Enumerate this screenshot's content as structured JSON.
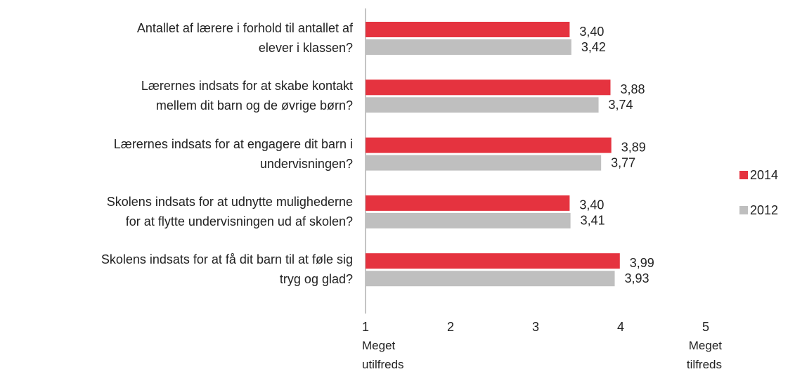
{
  "chart_data": {
    "type": "barh",
    "categories": [
      "Antallet af lærere i forhold til antallet af\nelever i klassen?",
      "Lærernes indsats for at skabe kontakt\nmellem dit barn og de øvrige børn?",
      "Lærernes indsats for at engagere dit barn i\nundervisningen?",
      "Skolens indsats for at udnytte mulighederne\nfor at flytte undervisningen ud af skolen?",
      "Skolens indsats for at få dit barn til at føle sig\ntryg og glad?"
    ],
    "series": [
      {
        "name": "2014",
        "color": "#e5333f",
        "values": [
          3.4,
          3.88,
          3.89,
          3.4,
          3.99
        ],
        "value_labels": [
          "3,40",
          "3,88",
          "3,89",
          "3,40",
          "3,99"
        ]
      },
      {
        "name": "2012",
        "color": "#bfbfbf",
        "values": [
          3.42,
          3.74,
          3.77,
          3.41,
          3.93
        ],
        "value_labels": [
          "3,42",
          "3,74",
          "3,77",
          "3,41",
          "3,93"
        ]
      }
    ],
    "xlim": [
      1,
      5
    ],
    "xticks": [
      1,
      2,
      3,
      4,
      5
    ],
    "annotations": [
      "Meget\nutilfreds",
      "Meget\ntilfreds"
    ],
    "legend": "right"
  }
}
